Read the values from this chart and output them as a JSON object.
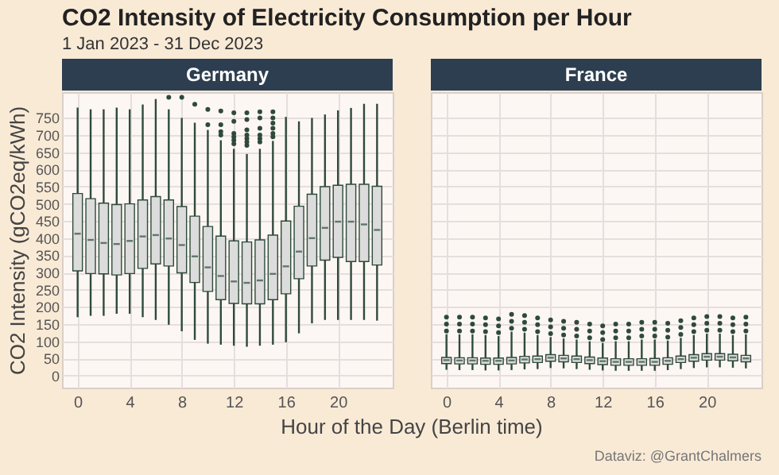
{
  "chart_data": [
    {
      "type": "box",
      "title": "CO2 Intensity of Electricity Consumption per Hour",
      "subtitle": "1 Jan 2023 - 31 Dec 2023",
      "xlabel": "Hour of the Day (Berlin time)",
      "ylabel": "CO2 Intensity (gCO2eq/kWh)",
      "x": [
        0,
        1,
        2,
        3,
        4,
        5,
        6,
        7,
        8,
        9,
        10,
        11,
        12,
        13,
        14,
        15,
        16,
        17,
        18,
        19,
        20,
        21,
        22,
        23
      ],
      "xlim": [
        -1.2,
        24.2
      ],
      "xticks": [
        0,
        4,
        8,
        12,
        16,
        20
      ],
      "ylim": [
        -35,
        825
      ],
      "yticks": [
        0,
        50,
        100,
        150,
        200,
        250,
        300,
        350,
        400,
        450,
        500,
        550,
        600,
        650,
        700,
        750
      ],
      "grid": true,
      "series": [
        {
          "name": "Germany",
          "color": "#dcdcdc",
          "boxes": [
            {
              "low": 170,
              "q1": 305,
              "median": 413,
              "q3": 530,
              "high": 780
            },
            {
              "low": 174,
              "q1": 297,
              "median": 395,
              "q3": 515,
              "high": 775
            },
            {
              "low": 174,
              "q1": 296,
              "median": 386,
              "q3": 502,
              "high": 775
            },
            {
              "low": 180,
              "q1": 293,
              "median": 383,
              "q3": 498,
              "high": 780
            },
            {
              "low": 180,
              "q1": 297,
              "median": 392,
              "q3": 500,
              "high": 775
            },
            {
              "low": 170,
              "q1": 312,
              "median": 405,
              "q3": 511,
              "high": 789
            },
            {
              "low": 162,
              "q1": 325,
              "median": 409,
              "q3": 521,
              "high": 805
            },
            {
              "low": 148,
              "q1": 319,
              "median": 399,
              "q3": 511,
              "high": 775,
              "outliers": [
                810
              ]
            },
            {
              "low": 129,
              "q1": 299,
              "median": 380,
              "q3": 492,
              "high": 750,
              "outliers": [
                810
              ]
            },
            {
              "low": 104,
              "q1": 271,
              "median": 347,
              "q3": 464,
              "high": 736,
              "outliers": [
                790
              ]
            },
            {
              "low": 93,
              "q1": 245,
              "median": 315,
              "q3": 434,
              "high": 715,
              "outliers": [
                775,
                730
              ]
            },
            {
              "low": 90,
              "q1": 221,
              "median": 290,
              "q3": 406,
              "high": 685,
              "outliers": [
                770,
                730,
                710,
                700
              ]
            },
            {
              "low": 87,
              "q1": 210,
              "median": 274,
              "q3": 392,
              "high": 660,
              "outliers": [
                765,
                740,
                705,
                695,
                685,
                675
              ]
            },
            {
              "low": 84,
              "q1": 209,
              "median": 270,
              "q3": 389,
              "high": 645,
              "outliers": [
                765,
                745,
                715,
                700,
                690,
                680,
                670
              ]
            },
            {
              "low": 87,
              "q1": 209,
              "median": 277,
              "q3": 395,
              "high": 660,
              "outliers": [
                768,
                750,
                720,
                700,
                690,
                680
              ]
            },
            {
              "low": 90,
              "q1": 221,
              "median": 296,
              "q3": 409,
              "high": 683,
              "outliers": [
                768,
                750,
                735,
                720,
                705,
                695
              ]
            },
            {
              "low": 97,
              "q1": 238,
              "median": 318,
              "q3": 450,
              "high": 753
            },
            {
              "low": 123,
              "q1": 282,
              "median": 361,
              "q3": 493,
              "high": 740
            },
            {
              "low": 152,
              "q1": 319,
              "median": 400,
              "q3": 528,
              "high": 750
            },
            {
              "low": 162,
              "q1": 336,
              "median": 430,
              "q3": 550,
              "high": 760
            },
            {
              "low": 162,
              "q1": 344,
              "median": 448,
              "q3": 554,
              "high": 772
            },
            {
              "low": 162,
              "q1": 332,
              "median": 448,
              "q3": 557,
              "high": 779
            },
            {
              "low": 162,
              "q1": 332,
              "median": 440,
              "q3": 557,
              "high": 791
            },
            {
              "low": 160,
              "q1": 322,
              "median": 424,
              "q3": 551,
              "high": 791
            }
          ]
        }
      ]
    },
    {
      "type": "box",
      "x": [
        0,
        1,
        2,
        3,
        4,
        5,
        6,
        7,
        8,
        9,
        10,
        11,
        12,
        13,
        14,
        15,
        16,
        17,
        18,
        19,
        20,
        21,
        22,
        23
      ],
      "xlim": [
        -1.2,
        24.2
      ],
      "xticks": [
        0,
        4,
        8,
        12,
        16,
        20
      ],
      "ylim": [
        -35,
        825
      ],
      "yticks": [
        0,
        50,
        100,
        150,
        200,
        250,
        300,
        350,
        400,
        450,
        500,
        550,
        600,
        650,
        700,
        750
      ],
      "tick_labels": "x",
      "grid": true,
      "annotations": [
        "Dataviz: @GrantChalmers"
      ],
      "series": [
        {
          "name": "France",
          "color": "#dcdcdc",
          "boxes": [
            {
              "low": 17,
              "q1": 35,
              "median": 45,
              "q3": 53,
              "high": 120,
              "outliers": [
                130,
                150,
                170
              ]
            },
            {
              "low": 16,
              "q1": 34,
              "median": 44,
              "q3": 52,
              "high": 120,
              "outliers": [
                130,
                150,
                170
              ]
            },
            {
              "low": 16,
              "q1": 34,
              "median": 44,
              "q3": 52,
              "high": 120,
              "outliers": [
                130,
                150,
                170
              ]
            },
            {
              "low": 15,
              "q1": 33,
              "median": 43,
              "q3": 51,
              "high": 118,
              "outliers": [
                128,
                148,
                168
              ]
            },
            {
              "low": 15,
              "q1": 33,
              "median": 43,
              "q3": 51,
              "high": 115,
              "outliers": [
                125,
                145,
                165
              ]
            },
            {
              "low": 16,
              "q1": 34,
              "median": 44,
              "q3": 53,
              "high": 128,
              "outliers": [
                138,
                158,
                178
              ]
            },
            {
              "low": 18,
              "q1": 37,
              "median": 47,
              "q3": 56,
              "high": 125,
              "outliers": [
                135,
                155,
                175
              ]
            },
            {
              "low": 19,
              "q1": 38,
              "median": 48,
              "q3": 57,
              "high": 118,
              "outliers": [
                128,
                148,
                168
              ]
            },
            {
              "low": 22,
              "q1": 42,
              "median": 52,
              "q3": 61,
              "high": 112,
              "outliers": [
                122,
                142,
                162
              ]
            },
            {
              "low": 21,
              "q1": 40,
              "median": 50,
              "q3": 59,
              "high": 108,
              "outliers": [
                118,
                138,
                158
              ]
            },
            {
              "low": 19,
              "q1": 38,
              "median": 48,
              "q3": 57,
              "high": 105,
              "outliers": [
                115,
                135,
                155
              ]
            },
            {
              "low": 17,
              "q1": 35,
              "median": 45,
              "q3": 54,
              "high": 100,
              "outliers": [
                110,
                130,
                150
              ]
            },
            {
              "low": 15,
              "q1": 32,
              "median": 42,
              "q3": 51,
              "high": 95,
              "outliers": [
                105,
                125,
                145
              ]
            },
            {
              "low": 14,
              "q1": 30,
              "median": 40,
              "q3": 49,
              "high": 100,
              "outliers": [
                110,
                130,
                150
              ]
            },
            {
              "low": 14,
              "q1": 30,
              "median": 40,
              "q3": 49,
              "high": 100,
              "outliers": [
                110,
                130,
                150
              ]
            },
            {
              "low": 14,
              "q1": 30,
              "median": 40,
              "q3": 49,
              "high": 105,
              "outliers": [
                115,
                135,
                155
              ]
            },
            {
              "low": 14,
              "q1": 30,
              "median": 40,
              "q3": 50,
              "high": 105,
              "outliers": [
                115,
                135,
                155
              ]
            },
            {
              "low": 16,
              "q1": 33,
              "median": 43,
              "q3": 52,
              "high": 102,
              "outliers": [
                112,
                132,
                152
              ]
            },
            {
              "low": 19,
              "q1": 38,
              "median": 48,
              "q3": 57,
              "high": 110,
              "outliers": [
                120,
                140,
                160
              ]
            },
            {
              "low": 22,
              "q1": 42,
              "median": 52,
              "q3": 61,
              "high": 118,
              "outliers": [
                128,
                148,
                168
              ]
            },
            {
              "low": 24,
              "q1": 45,
              "median": 55,
              "q3": 64,
              "high": 122,
              "outliers": [
                132,
                152,
                172
              ]
            },
            {
              "low": 24,
              "q1": 45,
              "median": 55,
              "q3": 64,
              "high": 122,
              "outliers": [
                132,
                152,
                172
              ]
            },
            {
              "low": 23,
              "q1": 43,
              "median": 53,
              "q3": 62,
              "high": 118,
              "outliers": [
                128,
                148,
                168
              ]
            },
            {
              "low": 21,
              "q1": 40,
              "median": 50,
              "q3": 59,
              "high": 120,
              "outliers": [
                130,
                150,
                170
              ]
            }
          ]
        }
      ]
    }
  ]
}
